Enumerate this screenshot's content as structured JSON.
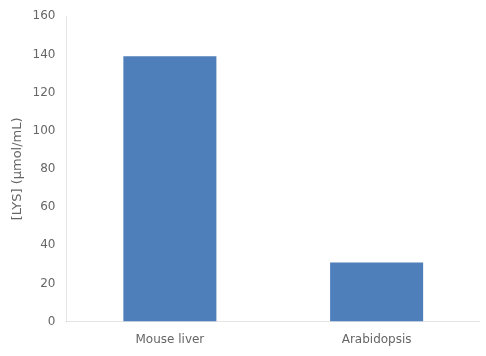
{
  "chart_data": {
    "type": "bar",
    "categories": [
      "Mouse liver",
      "Arabidopsis"
    ],
    "values": [
      139,
      31
    ],
    "color": "#4e7fba",
    "ylabel": "[LYS] (μmol/mL)",
    "ylim": [
      0,
      160
    ],
    "yticks": [
      0,
      20,
      40,
      60,
      80,
      100,
      120,
      140,
      160
    ],
    "grid": false
  }
}
